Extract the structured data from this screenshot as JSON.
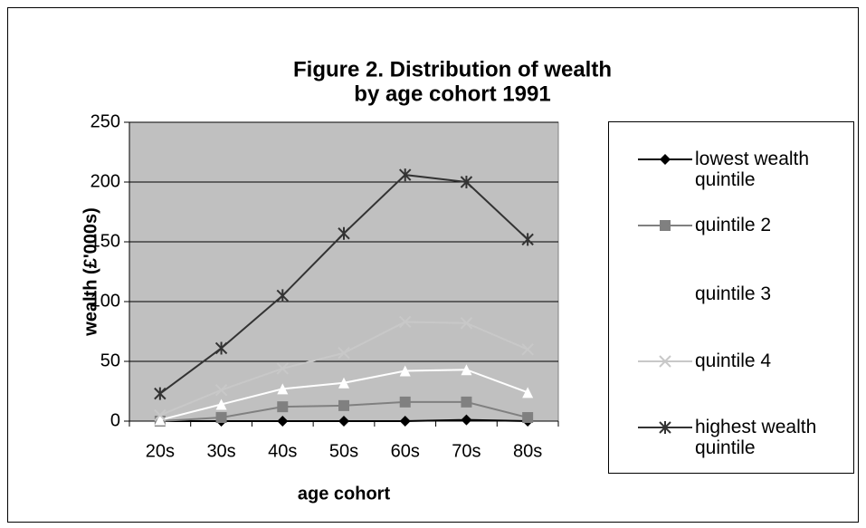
{
  "chart_data": {
    "type": "line",
    "title": "Figure 2.  Distribution of wealth",
    "subtitle": "by age cohort 1991",
    "x_label": "age cohort",
    "y_label": "wealth (£'000s)",
    "categories": [
      "20s",
      "30s",
      "40s",
      "50s",
      "60s",
      "70s",
      "80s"
    ],
    "ylim": [
      0,
      250
    ],
    "yticks": [
      0,
      50,
      100,
      150,
      200,
      250
    ],
    "grid": true,
    "legend": "right",
    "series": [
      {
        "name": "lowest wealth quintile",
        "color": "#000000",
        "marker": "diamond",
        "values": [
          0,
          0,
          0,
          0,
          0,
          1,
          0
        ]
      },
      {
        "name": "quintile 2",
        "color": "#808080",
        "marker": "square",
        "values": [
          0,
          3,
          12,
          13,
          16,
          16,
          3
        ]
      },
      {
        "name": "quintile 3",
        "color": "#ffffff",
        "marker": "triangle",
        "values": [
          1,
          14,
          27,
          32,
          42,
          43,
          24
        ]
      },
      {
        "name": "quintile 4",
        "color": "#c8c8c8",
        "marker": "x",
        "values": [
          5,
          26,
          44,
          57,
          83,
          82,
          60
        ]
      },
      {
        "name": "highest wealth quintile",
        "color": "#333333",
        "marker": "star",
        "values": [
          23,
          61,
          105,
          157,
          206,
          200,
          152
        ]
      }
    ]
  }
}
